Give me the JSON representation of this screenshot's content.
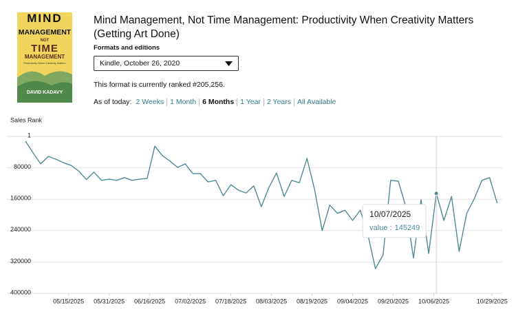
{
  "header": {
    "cover": {
      "line1": "MIND",
      "line2": "MANAGEMENT",
      "line3": "NOT",
      "line4": "TIME",
      "line5": "MANAGEMENT",
      "subtitle": "Productivity When Creativity Matters",
      "author": "DAVID KADAVY"
    },
    "title": "Mind Management, Not Time Management: Productivity When Creativity Matters (Getting Art Done)",
    "formats_label": "Formats and editions",
    "format_selected": "Kindle, October 26, 2020",
    "rank_text": "This format is currently ranked #205,256.",
    "as_of_label": "As of today:",
    "ranges": [
      "2 Weeks",
      "1 Month",
      "6 Months",
      "1 Year",
      "2 Years",
      "All Available"
    ],
    "active_range": 2
  },
  "chart_data": {
    "type": "line",
    "y_label": "Sales Rank",
    "color": "#4d8a98",
    "grid": true,
    "y_inverted": true,
    "ylim": [
      1,
      400000
    ],
    "yticks": [
      1,
      80000,
      160000,
      240000,
      320000,
      400000
    ],
    "xlim": [
      "04/28/2025",
      "11/02/2025"
    ],
    "xticks": [
      "05/15/2025",
      "05/31/2025",
      "06/16/2025",
      "07/02/2025",
      "07/18/2025",
      "08/03/2025",
      "08/19/2025",
      "09/04/2025",
      "09/20/2025",
      "10/06/2025",
      "10/29/2025"
    ],
    "x": [
      "04/28/2025",
      "05/01/2025",
      "05/04/2025",
      "05/07/2025",
      "05/10/2025",
      "05/13/2025",
      "05/16/2025",
      "05/19/2025",
      "05/22/2025",
      "05/25/2025",
      "05/28/2025",
      "05/31/2025",
      "06/03/2025",
      "06/06/2025",
      "06/09/2025",
      "06/12/2025",
      "06/15/2025",
      "06/18/2025",
      "06/21/2025",
      "06/24/2025",
      "06/27/2025",
      "06/30/2025",
      "07/03/2025",
      "07/06/2025",
      "07/09/2025",
      "07/12/2025",
      "07/15/2025",
      "07/18/2025",
      "07/21/2025",
      "07/24/2025",
      "07/27/2025",
      "07/30/2025",
      "08/02/2025",
      "08/05/2025",
      "08/08/2025",
      "08/11/2025",
      "08/14/2025",
      "08/17/2025",
      "08/20/2025",
      "08/23/2025",
      "08/26/2025",
      "08/29/2025",
      "09/01/2025",
      "09/04/2025",
      "09/07/2025",
      "09/10/2025",
      "09/13/2025",
      "09/16/2025",
      "09/19/2025",
      "09/22/2025",
      "09/25/2025",
      "09/28/2025",
      "10/01/2025",
      "10/04/2025",
      "10/07/2025",
      "10/10/2025",
      "10/13/2025",
      "10/16/2025",
      "10/19/2025",
      "10/22/2025",
      "10/25/2025",
      "10/28/2025",
      "10/31/2025"
    ],
    "values": [
      12000,
      42000,
      70000,
      51000,
      58000,
      67000,
      74000,
      88000,
      110000,
      91000,
      112000,
      109000,
      112000,
      105000,
      112000,
      109000,
      107000,
      25000,
      49000,
      63000,
      79000,
      70000,
      95000,
      95000,
      116000,
      112000,
      151000,
      123000,
      137000,
      144000,
      126000,
      179000,
      130000,
      93000,
      153000,
      112000,
      118000,
      56000,
      135000,
      240000,
      175000,
      196000,
      188000,
      214000,
      188000,
      249000,
      337000,
      302000,
      112000,
      114000,
      179000,
      310000,
      161000,
      298000,
      145249,
      214000,
      153000,
      293000,
      196000,
      158000,
      112000,
      105000,
      170000
    ],
    "tooltip": {
      "index": 54,
      "label": "value :"
    }
  }
}
